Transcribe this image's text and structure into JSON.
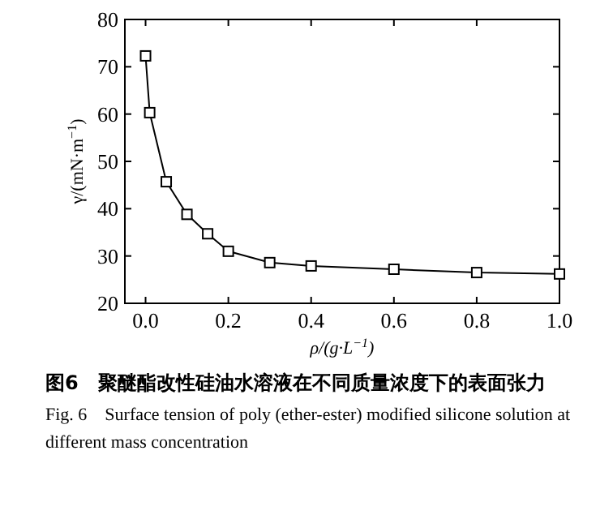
{
  "chart_data": {
    "type": "line",
    "title": "图6　聚醚酯改性硅油水溶液在不同质量浓度下的表面张力",
    "subtitle": "Fig. 6　Surface tension of poly (ether-ester) modified silicone solution at different mass concentration",
    "xlabel": "ρ/(g·L$^{−1}$)",
    "ylabel": "γ/(mN·m$^{−1}$)",
    "x": [
      0,
      0.01,
      0.05,
      0.1,
      0.15,
      0.2,
      0.3,
      0.4,
      0.6,
      0.8,
      1.0
    ],
    "series": [
      {
        "color": "#000000",
        "values": [
          72.3,
          60.3,
          45.7,
          38.8,
          34.7,
          31.0,
          28.6,
          27.9,
          27.2,
          26.5,
          26.2
        ]
      }
    ],
    "xlim": [
      -0.05,
      1.0
    ],
    "ylim": [
      20,
      80
    ],
    "xticks": [
      {
        "value": 0,
        "label": "0.0"
      },
      0.2,
      0.4,
      0.6,
      0.8,
      {
        "value": 1,
        "label": "1.0"
      }
    ],
    "yticks": [
      20,
      30,
      40,
      50,
      60,
      70,
      80
    ],
    "marker": "square",
    "line_style": "solid",
    "grid": false
  }
}
